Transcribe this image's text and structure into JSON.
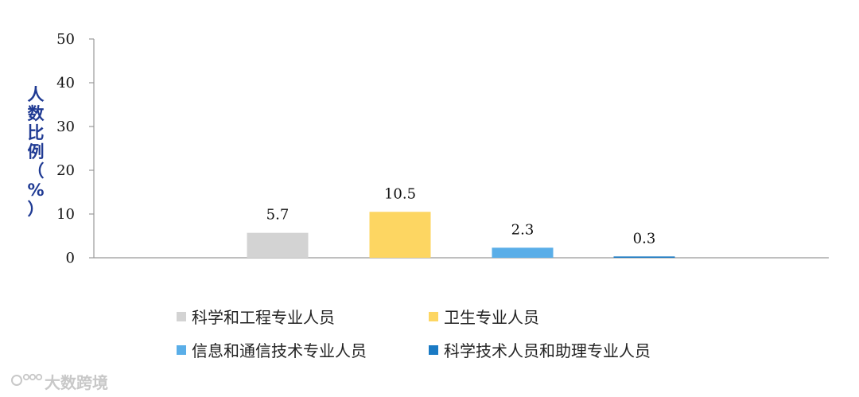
{
  "chart_data": {
    "type": "bar",
    "categories": [
      "科学和工程专业人员",
      "卫生专业人员",
      "信息和通信技术专业人员",
      "科学技术人员和助理专业人员"
    ],
    "values": [
      5.7,
      10.5,
      2.3,
      0.3
    ],
    "data_labels": [
      "5.7",
      "10.5",
      "2.3",
      "0.3"
    ],
    "colors": [
      "#d3d3d3",
      "#fdd662",
      "#5aaee8",
      "#1a7ac4"
    ],
    "title": "",
    "xlabel": "",
    "ylabel": "人数比例（%）",
    "ylim": [
      0,
      50
    ],
    "yticks": [
      "0",
      "10",
      "20",
      "30",
      "40",
      "50"
    ],
    "grid": false,
    "legend_position": "bottom"
  },
  "watermark": {
    "text": "大数跨境",
    "icon": "logo-icon"
  }
}
